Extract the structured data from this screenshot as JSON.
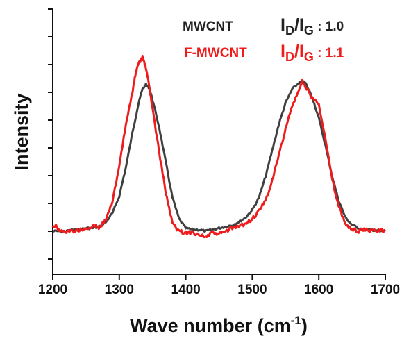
{
  "chart_data": {
    "type": "line",
    "title": "",
    "xlabel": "Wave number",
    "xlabel_unit": "(cm",
    "xlabel_unit_sup": "-1",
    "xlabel_unit_close": ")",
    "ylabel": "Intensity",
    "xlim": [
      1200,
      1700
    ],
    "x_ticks": [
      "1200",
      "1300",
      "1400",
      "1500",
      "1600",
      "1700"
    ],
    "y_tick_labels_shown": false,
    "grid": false,
    "legend_placement": "top-right",
    "series": [
      {
        "name": "MWCNT",
        "color": "#404040",
        "ratio_label": {
          "I1": "I",
          "sub1": "D",
          "slash": "/",
          "I2": "I",
          "sub2": "G",
          "value": " : 1.0"
        },
        "x": [
          1200,
          1210,
          1220,
          1230,
          1240,
          1250,
          1260,
          1270,
          1280,
          1290,
          1300,
          1310,
          1320,
          1330,
          1335,
          1340,
          1345,
          1350,
          1360,
          1370,
          1380,
          1390,
          1400,
          1410,
          1420,
          1430,
          1440,
          1450,
          1460,
          1470,
          1480,
          1490,
          1500,
          1510,
          1520,
          1530,
          1540,
          1550,
          1560,
          1570,
          1575,
          1580,
          1590,
          1600,
          1610,
          1620,
          1630,
          1640,
          1650,
          1660,
          1670,
          1680,
          1690,
          1700
        ],
        "y": [
          0.0,
          0.0,
          0.0,
          0.01,
          0.01,
          0.02,
          0.02,
          0.03,
          0.06,
          0.12,
          0.23,
          0.42,
          0.65,
          0.86,
          0.93,
          0.96,
          0.94,
          0.86,
          0.68,
          0.45,
          0.22,
          0.08,
          0.02,
          0.01,
          0.01,
          0.0,
          0.01,
          0.02,
          0.03,
          0.04,
          0.06,
          0.09,
          0.14,
          0.22,
          0.36,
          0.53,
          0.7,
          0.84,
          0.93,
          0.97,
          0.98,
          0.97,
          0.88,
          0.74,
          0.56,
          0.36,
          0.2,
          0.09,
          0.04,
          0.02,
          0.01,
          0.01,
          0.0,
          0.0
        ]
      },
      {
        "name": "F-MWCNT",
        "color": "#ee1c1c",
        "ratio_label": {
          "I1": "I",
          "sub1": "D",
          "slash": "/",
          "I2": "I",
          "sub2": "G",
          "value": " : 1.1"
        },
        "x": [
          1200,
          1205,
          1210,
          1220,
          1230,
          1240,
          1250,
          1260,
          1265,
          1270,
          1280,
          1290,
          1300,
          1310,
          1320,
          1325,
          1330,
          1335,
          1340,
          1345,
          1350,
          1360,
          1370,
          1380,
          1390,
          1400,
          1410,
          1420,
          1430,
          1440,
          1450,
          1460,
          1470,
          1480,
          1490,
          1500,
          1510,
          1520,
          1530,
          1540,
          1550,
          1560,
          1570,
          1575,
          1580,
          1590,
          1600,
          1610,
          1620,
          1630,
          1640,
          1650,
          1660,
          1670,
          1680,
          1690,
          1700
        ],
        "y": [
          0.03,
          0.04,
          0.0,
          0.0,
          0.0,
          0.01,
          0.01,
          0.03,
          0.04,
          0.02,
          0.08,
          0.2,
          0.42,
          0.7,
          0.92,
          1.04,
          1.1,
          1.14,
          1.07,
          0.95,
          0.8,
          0.52,
          0.25,
          0.05,
          0.0,
          -0.01,
          -0.01,
          -0.02,
          -0.04,
          -0.01,
          -0.02,
          0.0,
          0.02,
          0.03,
          0.05,
          0.08,
          0.13,
          0.2,
          0.33,
          0.5,
          0.67,
          0.82,
          0.92,
          0.98,
          0.95,
          0.87,
          0.84,
          0.6,
          0.34,
          0.16,
          0.05,
          0.01,
          0.0,
          0.01,
          0.0,
          0.01,
          0.0
        ]
      }
    ]
  }
}
